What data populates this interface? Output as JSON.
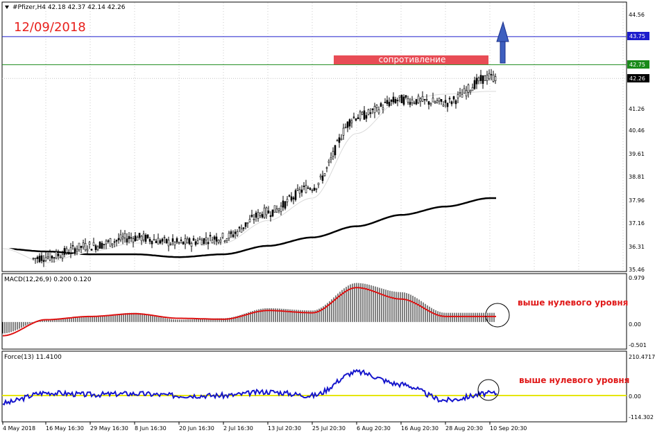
{
  "symbol_header": "#Pfizer,H4  42.18 42.37 42.14 42.26",
  "date_label": "12/09/2018",
  "resistance_label": "сопротивление",
  "colors": {
    "date_label": "#e8201c",
    "resistance_box": "#e84c55",
    "blue_level": "#1c1ccc",
    "green_level": "#1a8a1a",
    "arrow": "#3e5fbf",
    "macd_signal": "#dd1111",
    "force_line": "#1515cc",
    "zero_line": "#e6e600",
    "annotation": "#e01818"
  },
  "main_panel": {
    "price_ticks": [
      "44.56",
      "43.75",
      "42.75",
      "42.26",
      "41.26",
      "40.46",
      "39.61",
      "38.81",
      "37.96",
      "37.16",
      "36.31",
      "35.46"
    ],
    "level_tags": {
      "blue": "43.75",
      "green": "42.75",
      "last": "42.26"
    }
  },
  "macd_panel": {
    "title": "MACD(12,26,9) 0.200 0.120",
    "ticks": [
      "0.979",
      "0.00",
      "-0.501"
    ],
    "annotation": "выше нулевого уровня"
  },
  "force_panel": {
    "title": "Force(13) 11.4100",
    "ticks": [
      "210.4717",
      "0.00",
      "-114.302"
    ],
    "annotation": "выше нулевого уровня"
  },
  "time_labels": [
    "4 May 2018",
    "16 May 16:30",
    "29 May 16:30",
    "8 Jun 16:30",
    "20 Jun 16:30",
    "2 Jul 16:30",
    "13 Jul 20:30",
    "25 Jul 20:30",
    "6 Aug 20:30",
    "16 Aug 20:30",
    "28 Aug 20:30",
    "10 Sep 20:30"
  ],
  "chart_data": [
    {
      "type": "candlestick",
      "title": "#Pfizer,H4",
      "ylim": [
        35.46,
        44.56
      ],
      "levels": {
        "resistance_blue": 43.75,
        "resistance_green": 42.75,
        "last_price": 42.26
      },
      "last_bar_ohlc": [
        42.18,
        42.37,
        42.14,
        42.26
      ],
      "close_path": {
        "x": [
          "4 May 2018",
          "16 May 16:30",
          "29 May 16:30",
          "8 Jun 16:30",
          "20 Jun 16:30",
          "2 Jul 16:30",
          "13 Jul 20:30",
          "25 Jul 20:30",
          "6 Aug 20:30",
          "16 Aug 20:30",
          "28 Aug 20:30",
          "10 Sep 20:30"
        ],
        "y": [
          35.6,
          35.9,
          36.3,
          36.6,
          36.4,
          36.6,
          37.5,
          38.4,
          40.9,
          41.5,
          41.4,
          42.3
        ]
      },
      "moving_averages": [
        {
          "name": "fast (white)",
          "y": [
            36.2,
            35.7,
            36.1,
            36.4,
            36.4,
            36.4,
            37.2,
            38.0,
            40.3,
            41.5,
            41.7,
            41.8
          ]
        },
        {
          "name": "slow (black)",
          "y": [
            36.2,
            36.1,
            36.0,
            36.0,
            35.9,
            36.0,
            36.3,
            36.6,
            37.0,
            37.4,
            37.7,
            38.0
          ]
        }
      ]
    },
    {
      "type": "bar",
      "title": "MACD(12,26,9)",
      "ylim": [
        -0.501,
        0.979
      ],
      "values_at_labels": [
        -0.25,
        0.06,
        0.12,
        0.2,
        0.05,
        0.08,
        0.3,
        0.25,
        0.85,
        0.65,
        0.2,
        0.2
      ],
      "signal_at_labels": [
        -0.3,
        0.05,
        0.12,
        0.18,
        0.08,
        0.06,
        0.25,
        0.2,
        0.75,
        0.5,
        0.12,
        0.12
      ],
      "current": {
        "macd": 0.2,
        "signal": 0.12
      }
    },
    {
      "type": "line",
      "title": "Force(13)",
      "ylim": [
        -114.302,
        210.4717
      ],
      "values_at_labels": [
        -40,
        15,
        5,
        10,
        0,
        0,
        20,
        0,
        125,
        60,
        -25,
        11.41
      ],
      "current": 11.41
    }
  ]
}
